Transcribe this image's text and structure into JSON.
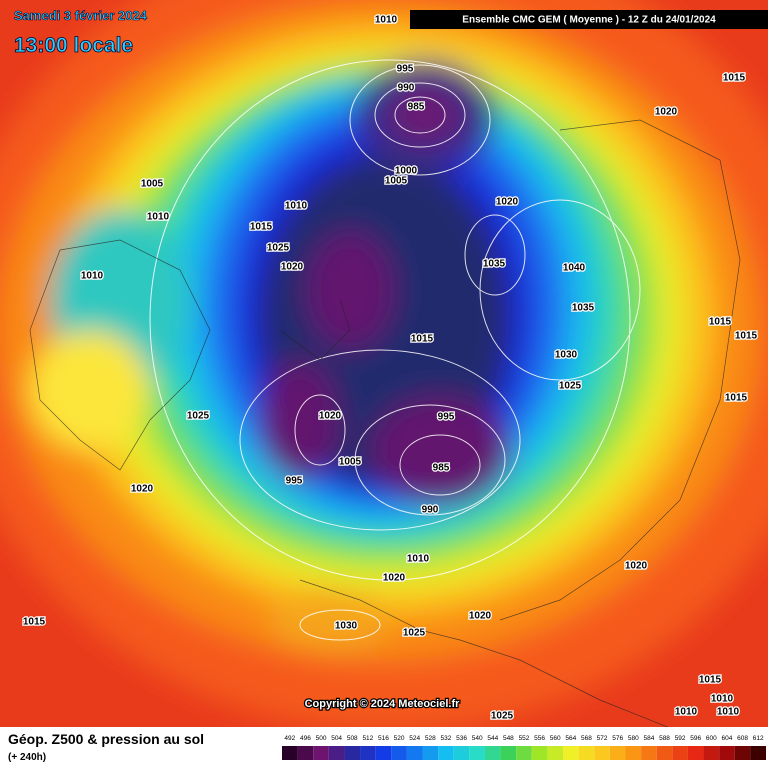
{
  "header": {
    "date": "Samedi 3 février 2024",
    "time": "13:00 locale",
    "model": "Ensemble CMC GEM  ( Moyenne )  -  12 Z du 24/01/2024"
  },
  "footer": {
    "title": "Géop. Z500 & pression au sol",
    "subtitle": "(+ 240h)",
    "copyright": "Copyright © 2024 Meteociel.fr"
  },
  "legend": {
    "labels": [
      492,
      496,
      500,
      504,
      508,
      512,
      516,
      520,
      524,
      528,
      532,
      536,
      540,
      544,
      548,
      552,
      556,
      560,
      564,
      568,
      572,
      576,
      580,
      584,
      588,
      592,
      596,
      600,
      604,
      608,
      612
    ]
  },
  "isobar_labels": [
    1010,
    995,
    990,
    985,
    1000,
    1005,
    1020,
    1005,
    1010,
    1010,
    1015,
    1025,
    1020,
    1010,
    1035,
    1040,
    1035,
    1015,
    1030,
    1025,
    1025,
    1020,
    995,
    1005,
    985,
    995,
    1020,
    990,
    1010,
    1020,
    1020,
    1020,
    1015,
    1030,
    1025,
    1015,
    1020,
    1015,
    1015,
    1015,
    1015,
    1010,
    1010,
    1010,
    1025
  ]
}
